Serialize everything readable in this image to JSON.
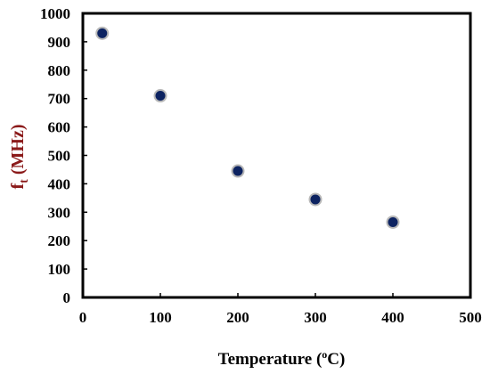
{
  "chart_data": {
    "type": "scatter",
    "title": "",
    "xlabel": {
      "prefix": "Temperature (",
      "sup": "o",
      "suffix": "C)"
    },
    "ylabel": {
      "main": "f",
      "sub": "t",
      "rest": " (MHz)"
    },
    "xlim": [
      0,
      500
    ],
    "ylim": [
      0,
      1000
    ],
    "xticks": [
      0,
      100,
      200,
      300,
      400,
      500
    ],
    "yticks": [
      0,
      100,
      200,
      300,
      400,
      500,
      600,
      700,
      800,
      900,
      1000
    ],
    "grid": false,
    "legend": "none",
    "marker_color": "#0d2361",
    "marker_edge": "#b8b8b8",
    "label_color": "#8b1a1a",
    "points": [
      {
        "x": 25,
        "y": 930
      },
      {
        "x": 100,
        "y": 710
      },
      {
        "x": 200,
        "y": 445
      },
      {
        "x": 300,
        "y": 345
      },
      {
        "x": 400,
        "y": 265
      }
    ]
  }
}
